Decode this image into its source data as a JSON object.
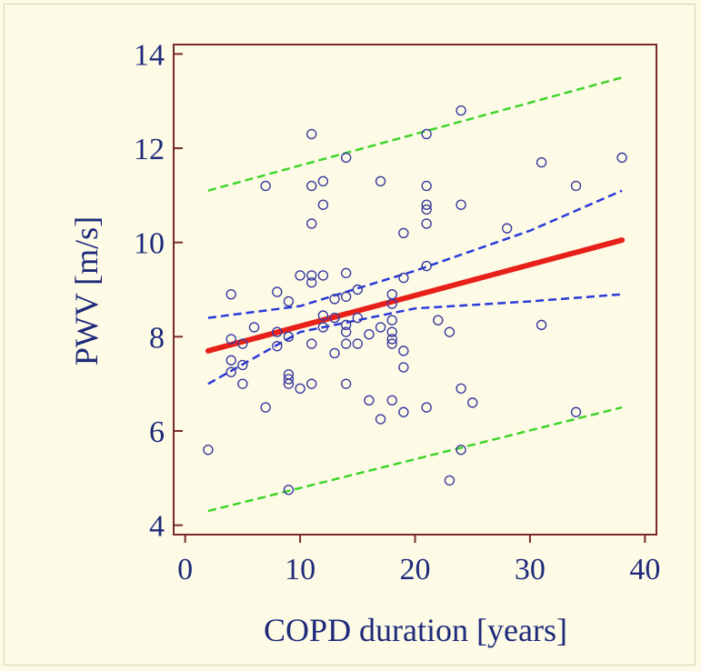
{
  "colors": {
    "background": "#fdfbe6",
    "axis": "#7a2a2a",
    "text": "#1f2a7a",
    "points": "#3a3aa0",
    "fit_line": "#e8201a",
    "confidence_band": "#2a3ad8",
    "prediction_band": "#3ed42a"
  },
  "chart_data": {
    "type": "scatter",
    "title": "",
    "xlabel": "COPD duration [years]",
    "ylabel": "PWV [m/s]",
    "xlim": [
      -1,
      41
    ],
    "ylim": [
      3.8,
      14.2
    ],
    "xticks": [
      0,
      10,
      20,
      30,
      40
    ],
    "yticks": [
      4,
      6,
      8,
      10,
      12,
      14
    ],
    "grid": false,
    "legend": "none",
    "points": [
      [
        2,
        5.6
      ],
      [
        4,
        8.9
      ],
      [
        4,
        7.95
      ],
      [
        4,
        7.5
      ],
      [
        4,
        7.25
      ],
      [
        5,
        7.85
      ],
      [
        5,
        7.4
      ],
      [
        5,
        7.0
      ],
      [
        6,
        8.2
      ],
      [
        7,
        11.2
      ],
      [
        7,
        6.5
      ],
      [
        8,
        8.95
      ],
      [
        8,
        8.1
      ],
      [
        8,
        7.8
      ],
      [
        9,
        8.75
      ],
      [
        9,
        8.0
      ],
      [
        9,
        7.2
      ],
      [
        9,
        7.1
      ],
      [
        9,
        7.0
      ],
      [
        9,
        4.75
      ],
      [
        10,
        9.3
      ],
      [
        10,
        6.9
      ],
      [
        11,
        12.3
      ],
      [
        11,
        11.2
      ],
      [
        11,
        10.4
      ],
      [
        11,
        9.3
      ],
      [
        11,
        9.15
      ],
      [
        11,
        7.85
      ],
      [
        11,
        7.0
      ],
      [
        12,
        11.3
      ],
      [
        12,
        10.8
      ],
      [
        12,
        9.3
      ],
      [
        12,
        8.45
      ],
      [
        12,
        8.2
      ],
      [
        13,
        8.8
      ],
      [
        13,
        8.4
      ],
      [
        13,
        7.65
      ],
      [
        14,
        11.8
      ],
      [
        14,
        9.35
      ],
      [
        14,
        8.85
      ],
      [
        14,
        8.25
      ],
      [
        14,
        8.1
      ],
      [
        14,
        7.85
      ],
      [
        14,
        7.0
      ],
      [
        15,
        9.0
      ],
      [
        15,
        8.4
      ],
      [
        15,
        7.85
      ],
      [
        16,
        8.05
      ],
      [
        16,
        6.65
      ],
      [
        17,
        11.3
      ],
      [
        17,
        8.2
      ],
      [
        17,
        6.25
      ],
      [
        18,
        8.9
      ],
      [
        18,
        8.7
      ],
      [
        18,
        8.35
      ],
      [
        18,
        8.1
      ],
      [
        18,
        7.95
      ],
      [
        18,
        7.85
      ],
      [
        18,
        6.65
      ],
      [
        19,
        10.2
      ],
      [
        19,
        9.25
      ],
      [
        19,
        7.7
      ],
      [
        19,
        7.35
      ],
      [
        19,
        6.4
      ],
      [
        21,
        12.3
      ],
      [
        21,
        11.2
      ],
      [
        21,
        10.8
      ],
      [
        21,
        10.7
      ],
      [
        21,
        10.4
      ],
      [
        21,
        9.5
      ],
      [
        21,
        6.5
      ],
      [
        22,
        8.35
      ],
      [
        23,
        8.1
      ],
      [
        23,
        4.95
      ],
      [
        24,
        12.8
      ],
      [
        24,
        10.8
      ],
      [
        24,
        6.9
      ],
      [
        24,
        5.6
      ],
      [
        25,
        6.6
      ],
      [
        28,
        10.3
      ],
      [
        31,
        11.7
      ],
      [
        31,
        8.25
      ],
      [
        34,
        11.2
      ],
      [
        34,
        6.4
      ],
      [
        38,
        11.8
      ]
    ],
    "fit_line": {
      "x": [
        2,
        38
      ],
      "y": [
        7.7,
        10.05
      ]
    },
    "confidence_band": {
      "upper": {
        "x": [
          2,
          10,
          20,
          30,
          38
        ],
        "y": [
          8.4,
          8.65,
          9.4,
          10.25,
          11.1
        ]
      },
      "lower": {
        "x": [
          2,
          10,
          20,
          30,
          38
        ],
        "y": [
          7.0,
          8.1,
          8.6,
          8.75,
          8.9
        ]
      }
    },
    "prediction_band": {
      "upper": {
        "x": [
          2,
          38
        ],
        "y": [
          11.1,
          13.5
        ]
      },
      "lower": {
        "x": [
          2,
          38
        ],
        "y": [
          4.3,
          6.5
        ]
      }
    }
  }
}
